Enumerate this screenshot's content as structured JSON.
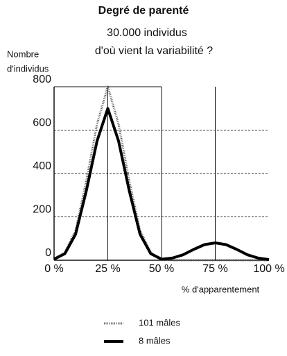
{
  "chart_data": {
    "type": "line",
    "title": "Degré de parenté",
    "subtitle": [
      "30.000 individus",
      "d'où vient la variabilité ?"
    ],
    "ylabel": [
      "Nombre",
      "d'individus"
    ],
    "xlabel": "% d'apparentement",
    "x": [
      0,
      5,
      10,
      15,
      20,
      25,
      30,
      35,
      40,
      45,
      50,
      55,
      60,
      65,
      70,
      75,
      80,
      85,
      90,
      95,
      100
    ],
    "series": [
      {
        "name": "101 mâles",
        "color": "#555555",
        "style": "dotted",
        "values": [
          6,
          35,
          137,
          366,
          628,
          800,
          628,
          366,
          137,
          35,
          6,
          0,
          0,
          0,
          0,
          0,
          0,
          0,
          0,
          0,
          0
        ]
      },
      {
        "name": "8 mâles",
        "color": "#000000",
        "style": "solid",
        "values": [
          5,
          30,
          120,
          320,
          550,
          700,
          550,
          320,
          120,
          30,
          5,
          10,
          25,
          50,
          72,
          80,
          72,
          50,
          25,
          10,
          3
        ]
      }
    ],
    "xlim": [
      0,
      100
    ],
    "xticks": [
      {
        "value": 0,
        "label": "0 %"
      },
      {
        "value": 25,
        "label": "25 %"
      },
      {
        "value": 50,
        "label": "50 %"
      },
      {
        "value": 75,
        "label": "75 %"
      },
      {
        "value": 100,
        "label": "100 %"
      }
    ],
    "ylim": [
      0,
      800
    ],
    "yticks": [
      0,
      200,
      400,
      600,
      800
    ],
    "grid": true,
    "legend": "bottom"
  }
}
